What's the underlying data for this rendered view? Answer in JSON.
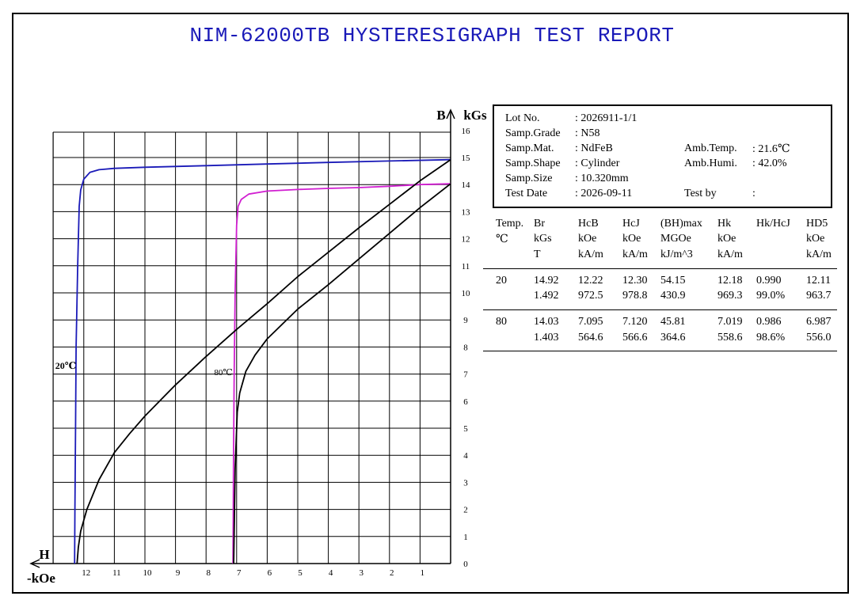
{
  "title": "NIM-62000TB HYSTERESIGRAPH TEST REPORT",
  "info": {
    "rows": [
      {
        "label": "Lot No.",
        "value": ": 2026911-1/1"
      },
      {
        "label": "Samp.Grade",
        "value": ": N58"
      },
      {
        "label": "Samp.Mat.",
        "value": ": NdFeB",
        "label2": "Amb.Temp.",
        "value2": ": 21.6℃"
      },
      {
        "label": "Samp.Shape",
        "value": ": Cylinder",
        "label2": "Amb.Humi.",
        "value2": ": 42.0%"
      },
      {
        "label": "Samp.Size",
        "value": ": 10.320mm"
      },
      {
        "label": "Test Date",
        "value": ": 2026-09-11",
        "label2": "Test by",
        "value2": ":"
      }
    ]
  },
  "results": {
    "headers": [
      [
        "Temp.",
        "℃",
        ""
      ],
      [
        "Br",
        "kGs",
        "T"
      ],
      [
        "HcB",
        "kOe",
        "kA/m"
      ],
      [
        "HcJ",
        "kOe",
        "kA/m"
      ],
      [
        "(BH)max",
        "MGOe",
        "kJ/m^3"
      ],
      [
        "Hk",
        "kOe",
        "kA/m"
      ],
      [
        "Hk/HcJ",
        "",
        ""
      ],
      [
        "HD5",
        "kOe",
        "kA/m"
      ]
    ],
    "rows": [
      {
        "temp": "20",
        "line1": [
          "14.92",
          "12.22",
          "12.30",
          "54.15",
          "12.18",
          "0.990",
          "12.11"
        ],
        "line2": [
          "1.492",
          "972.5",
          "978.8",
          "430.9",
          "969.3",
          "99.0%",
          "963.7"
        ]
      },
      {
        "temp": "80",
        "line1": [
          "14.03",
          "7.095",
          "7.120",
          "45.81",
          "7.019",
          "0.986",
          "6.987"
        ],
        "line2": [
          "1.403",
          "564.6",
          "566.6",
          "364.6",
          "558.6",
          "98.6%",
          "556.0"
        ]
      }
    ]
  },
  "chart_data": {
    "type": "line",
    "x_unit_label": "-kOe",
    "x_axis_label": "H",
    "y_axis_label": "B",
    "y_unit_label": "kGs",
    "x_range": [
      0,
      13.5
    ],
    "y_range": [
      0,
      16
    ],
    "x_ticks": [
      "1",
      "2",
      "3",
      "4",
      "5",
      "6",
      "7",
      "8",
      "9",
      "10",
      "11",
      "12"
    ],
    "y_ticks": [
      "0",
      "1",
      "2",
      "3",
      "4",
      "5",
      "6",
      "7",
      "8",
      "9",
      "10",
      "11",
      "12",
      "13",
      "14",
      "15",
      "16"
    ],
    "grid": true,
    "annotations": [
      {
        "text": "20℃",
        "color": "#000000"
      },
      {
        "text": "80℃",
        "color": "#000000"
      }
    ],
    "series": [
      {
        "id": "J-20C",
        "color": "#1a1ab8",
        "points": [
          [
            0,
            14.92
          ],
          [
            2,
            14.87
          ],
          [
            4,
            14.82
          ],
          [
            6,
            14.76
          ],
          [
            8,
            14.7
          ],
          [
            10,
            14.64
          ],
          [
            11,
            14.6
          ],
          [
            11.5,
            14.55
          ],
          [
            11.8,
            14.45
          ],
          [
            12.0,
            14.2
          ],
          [
            12.1,
            13.8
          ],
          [
            12.15,
            13.2
          ],
          [
            12.2,
            11
          ],
          [
            12.25,
            8
          ],
          [
            12.27,
            5
          ],
          [
            12.29,
            2
          ],
          [
            12.3,
            0
          ]
        ]
      },
      {
        "id": "J-80C",
        "color": "#d11fd1",
        "points": [
          [
            0,
            14.03
          ],
          [
            1,
            14.0
          ],
          [
            2,
            13.94
          ],
          [
            3,
            13.89
          ],
          [
            4,
            13.86
          ],
          [
            5,
            13.82
          ],
          [
            6,
            13.76
          ],
          [
            6.6,
            13.65
          ],
          [
            6.85,
            13.45
          ],
          [
            6.95,
            13.2
          ],
          [
            7.0,
            12.5
          ],
          [
            7.05,
            10
          ],
          [
            7.08,
            7
          ],
          [
            7.1,
            4
          ],
          [
            7.12,
            0
          ]
        ]
      },
      {
        "id": "B-20C",
        "color": "#000000",
        "points": [
          [
            0,
            14.92
          ],
          [
            1,
            14.14
          ],
          [
            2,
            13.27
          ],
          [
            3,
            12.4
          ],
          [
            4,
            11.5
          ],
          [
            5,
            10.6
          ],
          [
            6,
            9.6
          ],
          [
            7,
            8.65
          ],
          [
            8,
            7.65
          ],
          [
            9,
            6.6
          ],
          [
            10,
            5.45
          ],
          [
            10.5,
            4.8
          ],
          [
            11,
            4.1
          ],
          [
            11.5,
            3.1
          ],
          [
            11.9,
            2.0
          ],
          [
            12.1,
            1.2
          ],
          [
            12.18,
            0.6
          ],
          [
            12.22,
            0
          ]
        ]
      },
      {
        "id": "B-80C",
        "color": "#000000",
        "points": [
          [
            0,
            14.03
          ],
          [
            1,
            13.15
          ],
          [
            2,
            12.2
          ],
          [
            3,
            11.25
          ],
          [
            4,
            10.3
          ],
          [
            5,
            9.4
          ],
          [
            6,
            8.3
          ],
          [
            6.4,
            7.7
          ],
          [
            6.7,
            7.1
          ],
          [
            6.9,
            6.3
          ],
          [
            6.98,
            5.6
          ],
          [
            7.05,
            3.5
          ],
          [
            7.095,
            0
          ]
        ]
      }
    ]
  }
}
